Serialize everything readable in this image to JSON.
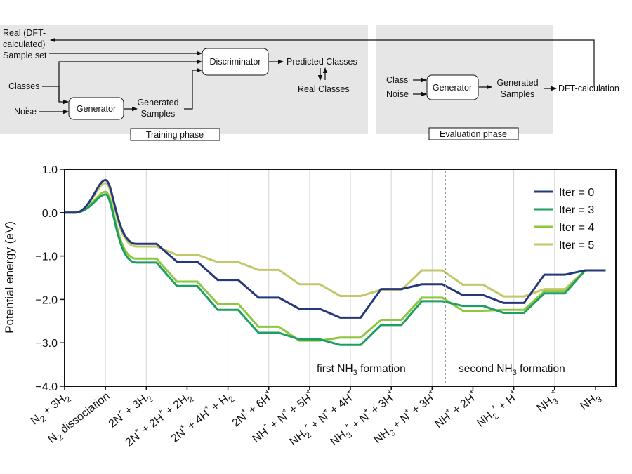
{
  "diagram": {
    "training": {
      "real_line1": "Real (DFT-",
      "real_line2": "calculated)",
      "real_line3": "Sample set",
      "classes": "Classes",
      "noise": "Noise",
      "generator": "Generator",
      "generated_line1": "Generated",
      "generated_line2": "Samples",
      "discriminator": "Discriminator",
      "predicted": "Predicted Classes",
      "real_classes": "Real Classes",
      "phase_label": "Training phase"
    },
    "evaluation": {
      "class": "Class",
      "noise": "Noise",
      "generator": "Generator",
      "generated_line1": "Generated",
      "generated_line2": "Samples",
      "dft": "DFT-calculation",
      "phase_label": "Evaluation phase"
    }
  },
  "chart_data": {
    "type": "line",
    "ylabel": "Potential energy (eV)",
    "ylim": [
      -4.0,
      1.0
    ],
    "yticks": [
      "1.0",
      "0.0",
      "−1.0",
      "−2.0",
      "−3.0",
      "−4.0"
    ],
    "ytick_values": [
      1.0,
      0.0,
      -1.0,
      -2.0,
      -3.0,
      -4.0
    ],
    "grid": "vertical gridlines at each state",
    "legend_position": "top-right",
    "categories": [
      "N2 + 3H2",
      "N2 dissociation",
      "2N* + 3H2",
      "2N* + 2H* + 2H2",
      "2N* + 4H* + H2",
      "2N* + 6H*",
      "NH* + N* + 5H*",
      "NH2* + N* + 4H*",
      "NH3* + N* + 3H*",
      "NH3 + N* + 3H*",
      "NH* + 2H*",
      "NH2* + H*",
      "NH3*",
      "NH3"
    ],
    "series": [
      {
        "name": "Iter = 0",
        "color": "#25397a",
        "values": [
          0.0,
          0.75,
          -0.72,
          -1.13,
          -1.55,
          -1.96,
          -2.22,
          -2.42,
          -1.76,
          -1.65,
          -1.9,
          -2.08,
          -1.43,
          -1.33
        ]
      },
      {
        "name": "Iter = 3",
        "color": "#1d9f62",
        "values": [
          0.0,
          0.42,
          -1.15,
          -1.69,
          -2.24,
          -2.77,
          -2.92,
          -3.05,
          -2.59,
          -2.04,
          -2.15,
          -2.31,
          -1.86,
          -1.33
        ]
      },
      {
        "name": "Iter = 4",
        "color": "#8ec63f",
        "values": [
          0.0,
          0.48,
          -1.06,
          -1.59,
          -2.1,
          -2.63,
          -2.95,
          -2.88,
          -2.47,
          -1.96,
          -2.26,
          -2.24,
          -1.81,
          -1.33
        ]
      },
      {
        "name": "Iter = 5",
        "color": "#c2c76a",
        "values": [
          0.0,
          0.68,
          -0.78,
          -0.97,
          -1.14,
          -1.32,
          -1.65,
          -1.92,
          -1.78,
          -1.33,
          -1.66,
          -1.93,
          -1.76,
          -1.33
        ]
      }
    ],
    "annotations": [
      {
        "text": "first NH3 formation"
      },
      {
        "text": "second NH3 formation"
      }
    ]
  }
}
